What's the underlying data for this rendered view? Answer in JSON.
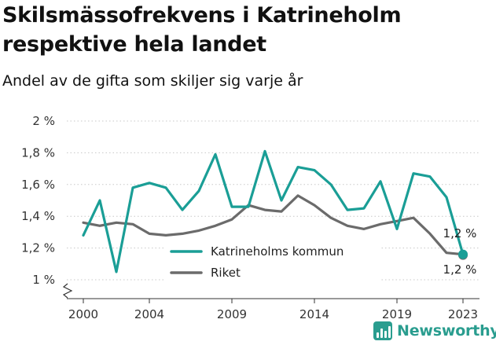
{
  "header": {
    "title": "Skilsmässofrekvens i Katrineholm respektive hela landet",
    "subtitle": "Andel av de gifta som skiljer sig varje år"
  },
  "brand": {
    "name": "Newsworthy",
    "icon": "newsworthy-logo-icon",
    "color": "#2a9d8f"
  },
  "chart_data": {
    "type": "line",
    "title": "Skilsmässofrekvens i Katrineholm respektive hela landet",
    "subtitle": "Andel av de gifta som skiljer sig varje år",
    "xlabel": "",
    "ylabel": "",
    "x_ticks": [
      "2000",
      "2004",
      "2009",
      "2014",
      "2019",
      "2023"
    ],
    "y_ticks": [
      "1 %",
      "1,2 %",
      "1,4 %",
      "1,6 %",
      "1,8 %",
      "2 %"
    ],
    "ylim": [
      1.0,
      2.0
    ],
    "xlim": [
      1999,
      2024
    ],
    "y_axis_break": true,
    "grid": "horizontal-dotted",
    "legend_position": "bottom-center",
    "x": [
      2000,
      2001,
      2002,
      2003,
      2004,
      2005,
      2006,
      2007,
      2008,
      2009,
      2010,
      2011,
      2012,
      2013,
      2014,
      2015,
      2016,
      2017,
      2018,
      2019,
      2020,
      2021,
      2022,
      2023
    ],
    "series": [
      {
        "name": "Katrineholms kommun",
        "color": "#1a9e96",
        "values": [
          1.28,
          1.5,
          1.05,
          1.58,
          1.61,
          1.58,
          1.44,
          1.56,
          1.79,
          1.46,
          1.46,
          1.81,
          1.5,
          1.71,
          1.69,
          1.6,
          1.44,
          1.45,
          1.62,
          1.32,
          1.67,
          1.65,
          1.52,
          1.16
        ],
        "end_label": "1,2 %"
      },
      {
        "name": "Riket",
        "color": "#6b6b6b",
        "values": [
          1.36,
          1.34,
          1.36,
          1.35,
          1.29,
          1.28,
          1.29,
          1.31,
          1.34,
          1.38,
          1.47,
          1.44,
          1.43,
          1.53,
          1.47,
          1.39,
          1.34,
          1.32,
          1.35,
          1.37,
          1.39,
          1.29,
          1.17,
          1.16
        ],
        "end_label": "1,2 %"
      }
    ]
  }
}
